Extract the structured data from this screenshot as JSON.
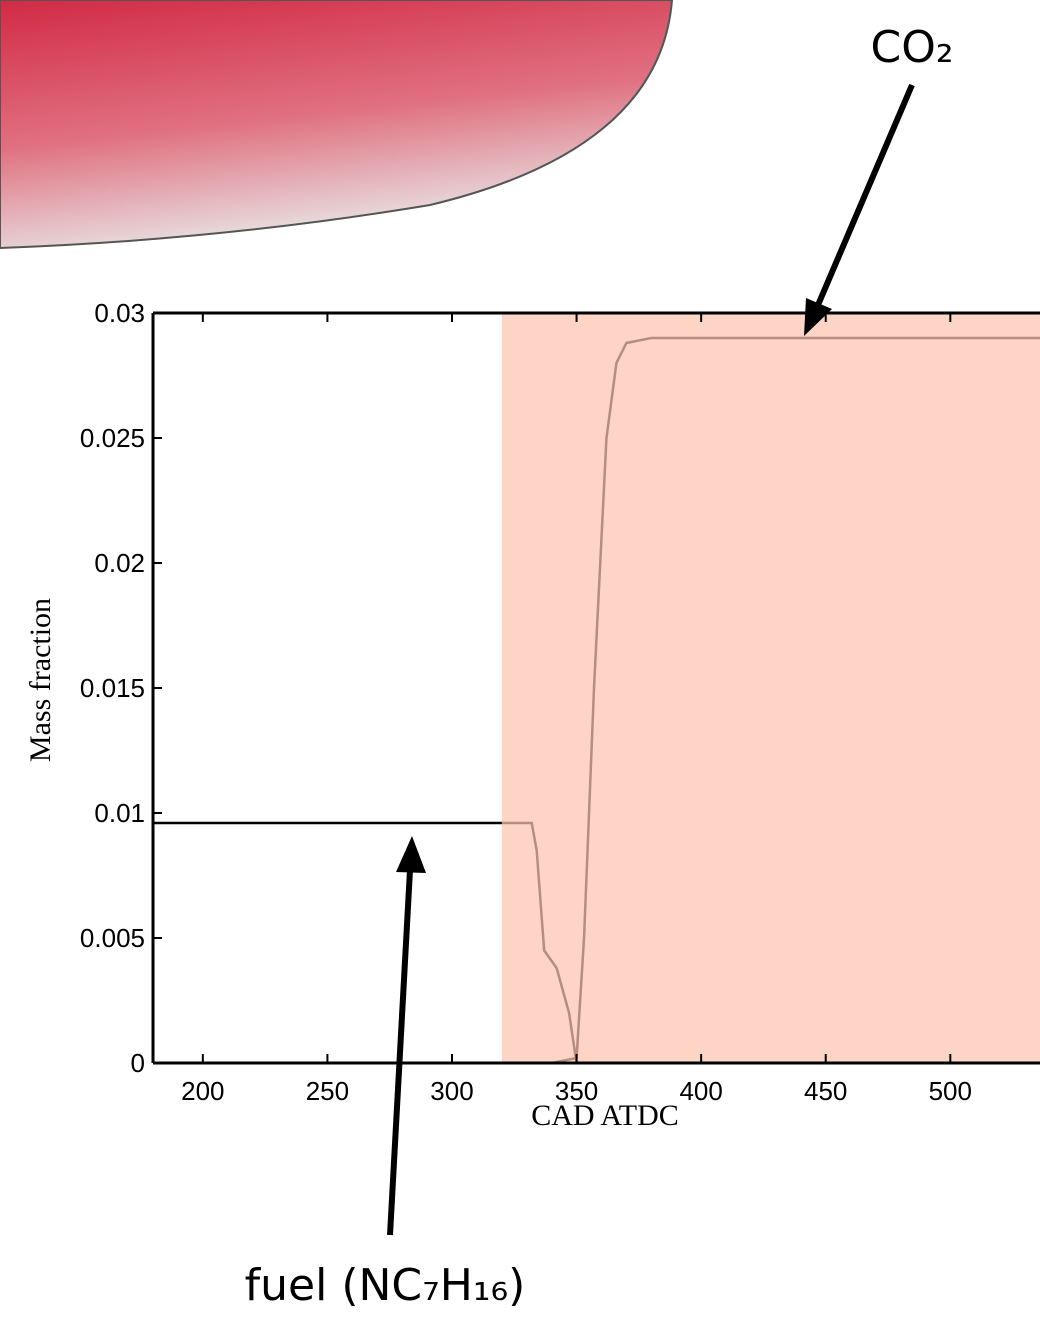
{
  "chart_data": {
    "type": "line",
    "x_label": "CAD ATDC",
    "y_label": "Mass fraction",
    "xlim": [
      180,
      536
    ],
    "ylim": [
      0,
      0.03
    ],
    "xticks": [
      200,
      250,
      300,
      350,
      400,
      450,
      500
    ],
    "yticks": [
      0,
      0.005,
      0.01,
      0.015,
      0.02,
      0.025,
      0.03
    ],
    "shaded_region": {
      "x": [
        320,
        536
      ],
      "color": "#fcc4ae"
    },
    "series": [
      {
        "color": "#000000",
        "x": [
          180,
          320,
          332,
          334,
          337,
          342,
          347,
          350,
          360,
          536
        ],
        "values": [
          0.0096,
          0.0096,
          0.0096,
          0.0085,
          0.0045,
          0.0038,
          0.002,
          0,
          0,
          0
        ]
      },
      {
        "color": "#000000",
        "x": [
          180,
          340,
          350,
          353,
          357,
          362,
          366,
          370,
          380,
          536
        ],
        "values": [
          0,
          0,
          0.0002,
          0.005,
          0.015,
          0.025,
          0.028,
          0.0288,
          0.029,
          0.029
        ]
      }
    ],
    "annotations": [
      "CO₂",
      "fuel (NC₇H₁₆)"
    ]
  }
}
